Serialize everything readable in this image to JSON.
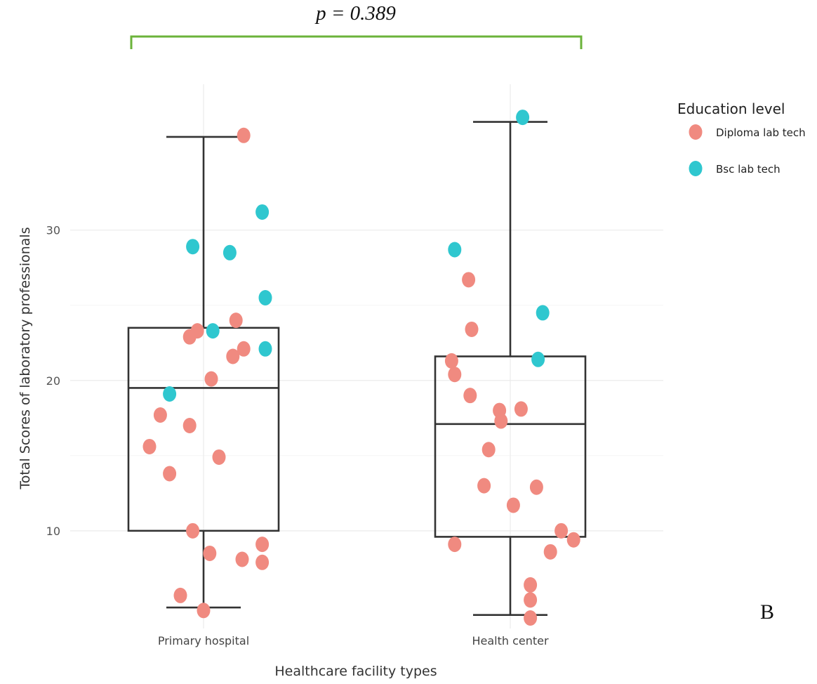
{
  "chart_data": {
    "type": "box",
    "xlabel": "Healthcare facility types",
    "ylabel": "Total Scores of laboratory professionals",
    "categories": [
      "Primary hospital",
      "Health center"
    ],
    "y_ticks": [
      10,
      20,
      30
    ],
    "ylim": [
      3.5,
      39.7
    ],
    "grid": true,
    "legend": {
      "title": "Education level",
      "position": "right",
      "entries": [
        {
          "label": "Diploma lab tech",
          "color": "#F08A80"
        },
        {
          "label": "Bsc lab tech",
          "color": "#2FC7CF"
        }
      ]
    },
    "significance": {
      "text": "p = 0.389",
      "color": "#6BB33A"
    },
    "panel_label": "B",
    "boxes": [
      {
        "category": "Primary hospital",
        "min": 4.9,
        "q1": 10.0,
        "median": 19.5,
        "q3": 23.5,
        "max": 36.2
      },
      {
        "category": "Health center",
        "min": 4.4,
        "q1": 9.6,
        "median": 17.1,
        "q3": 21.6,
        "max": 37.2
      }
    ],
    "series": [
      {
        "name": "Diploma lab tech",
        "points": [
          {
            "category": "Primary hospital",
            "x_offset": 0.26,
            "y": 36.3
          },
          {
            "category": "Primary hospital",
            "x_offset": 0.21,
            "y": 24.0
          },
          {
            "category": "Primary hospital",
            "x_offset": -0.04,
            "y": 23.3
          },
          {
            "category": "Primary hospital",
            "x_offset": -0.09,
            "y": 22.9
          },
          {
            "category": "Primary hospital",
            "x_offset": 0.26,
            "y": 22.1
          },
          {
            "category": "Primary hospital",
            "x_offset": 0.19,
            "y": 21.6
          },
          {
            "category": "Primary hospital",
            "x_offset": 0.05,
            "y": 20.1
          },
          {
            "category": "Primary hospital",
            "x_offset": -0.28,
            "y": 17.7
          },
          {
            "category": "Primary hospital",
            "x_offset": -0.09,
            "y": 17.0
          },
          {
            "category": "Primary hospital",
            "x_offset": -0.35,
            "y": 15.6
          },
          {
            "category": "Primary hospital",
            "x_offset": 0.1,
            "y": 14.9
          },
          {
            "category": "Primary hospital",
            "x_offset": -0.22,
            "y": 13.8
          },
          {
            "category": "Primary hospital",
            "x_offset": -0.07,
            "y": 10.0
          },
          {
            "category": "Primary hospital",
            "x_offset": 0.38,
            "y": 9.1
          },
          {
            "category": "Primary hospital",
            "x_offset": 0.04,
            "y": 8.5
          },
          {
            "category": "Primary hospital",
            "x_offset": 0.25,
            "y": 8.1
          },
          {
            "category": "Primary hospital",
            "x_offset": 0.38,
            "y": 7.9
          },
          {
            "category": "Primary hospital",
            "x_offset": -0.15,
            "y": 5.7
          },
          {
            "category": "Primary hospital",
            "x_offset": 0.0,
            "y": 4.7
          },
          {
            "category": "Health center",
            "x_offset": -0.27,
            "y": 26.7
          },
          {
            "category": "Health center",
            "x_offset": -0.25,
            "y": 23.4
          },
          {
            "category": "Health center",
            "x_offset": -0.38,
            "y": 21.3
          },
          {
            "category": "Health center",
            "x_offset": -0.36,
            "y": 20.4
          },
          {
            "category": "Health center",
            "x_offset": -0.26,
            "y": 19.0
          },
          {
            "category": "Health center",
            "x_offset": -0.07,
            "y": 18.0
          },
          {
            "category": "Health center",
            "x_offset": 0.07,
            "y": 18.1
          },
          {
            "category": "Health center",
            "x_offset": -0.06,
            "y": 17.3
          },
          {
            "category": "Health center",
            "x_offset": -0.14,
            "y": 15.4
          },
          {
            "category": "Health center",
            "x_offset": -0.17,
            "y": 13.0
          },
          {
            "category": "Health center",
            "x_offset": 0.17,
            "y": 12.9
          },
          {
            "category": "Health center",
            "x_offset": 0.02,
            "y": 11.7
          },
          {
            "category": "Health center",
            "x_offset": 0.33,
            "y": 10.0
          },
          {
            "category": "Health center",
            "x_offset": 0.41,
            "y": 9.4
          },
          {
            "category": "Health center",
            "x_offset": -0.36,
            "y": 9.1
          },
          {
            "category": "Health center",
            "x_offset": 0.26,
            "y": 8.6
          },
          {
            "category": "Health center",
            "x_offset": 0.13,
            "y": 6.4
          },
          {
            "category": "Health center",
            "x_offset": 0.13,
            "y": 5.4
          },
          {
            "category": "Health center",
            "x_offset": 0.13,
            "y": 4.2
          }
        ]
      },
      {
        "name": "Bsc lab tech",
        "points": [
          {
            "category": "Primary hospital",
            "x_offset": 0.38,
            "y": 31.2
          },
          {
            "category": "Primary hospital",
            "x_offset": -0.07,
            "y": 28.9
          },
          {
            "category": "Primary hospital",
            "x_offset": 0.17,
            "y": 28.5
          },
          {
            "category": "Primary hospital",
            "x_offset": 0.4,
            "y": 25.5
          },
          {
            "category": "Primary hospital",
            "x_offset": 0.06,
            "y": 23.3
          },
          {
            "category": "Primary hospital",
            "x_offset": 0.4,
            "y": 22.1
          },
          {
            "category": "Primary hospital",
            "x_offset": -0.22,
            "y": 19.1
          },
          {
            "category": "Health center",
            "x_offset": 0.08,
            "y": 37.5
          },
          {
            "category": "Health center",
            "x_offset": -0.36,
            "y": 28.7
          },
          {
            "category": "Health center",
            "x_offset": 0.21,
            "y": 24.5
          },
          {
            "category": "Health center",
            "x_offset": 0.18,
            "y": 21.4
          }
        ]
      }
    ]
  }
}
